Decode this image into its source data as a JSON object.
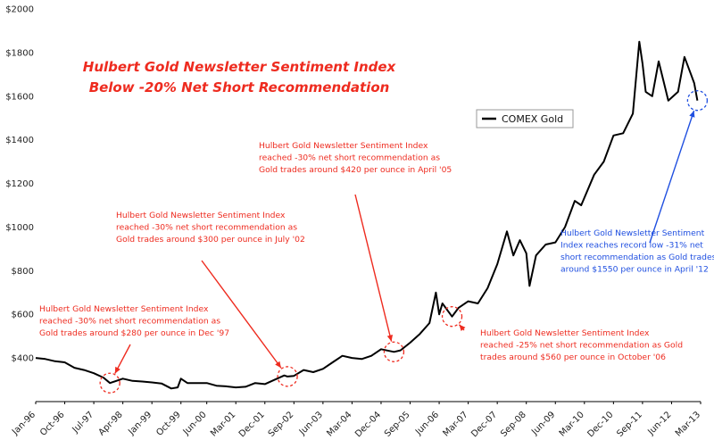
{
  "chart_data": {
    "type": "line",
    "title": [
      "Hulbert Gold Newsletter Sentiment Index",
      "Below -20% Net Short Recommendation"
    ],
    "xlabel": "",
    "ylabel": "",
    "ylim": [
      200,
      2000
    ],
    "yticks": [
      400,
      600,
      800,
      1000,
      1200,
      1400,
      1600,
      1800,
      2000
    ],
    "ytick_labels": [
      "$400",
      "$600",
      "$800",
      "$1000",
      "$1200",
      "$1400",
      "$1600",
      "$1800",
      "$2000"
    ],
    "xticks": [
      "1996-01",
      "1996-10",
      "1997-07",
      "1998-04",
      "1999-01",
      "1999-10",
      "2000-06",
      "2001-03",
      "2001-12",
      "2002-09",
      "2003-06",
      "2004-03",
      "2004-12",
      "2005-09",
      "2006-06",
      "2007-03",
      "2007-12",
      "2008-09",
      "2009-06",
      "2010-03",
      "2010-12",
      "2011-09",
      "2012-06",
      "2013-03"
    ],
    "xtick_labels": [
      "Jan-96",
      "Oct-96",
      "Jul-97",
      "Apr-98",
      "Jan-99",
      "Oct-99",
      "Jun-00",
      "Mar-01",
      "Dec-01",
      "Sep-02",
      "Jun-03",
      "Mar-04",
      "Dec-04",
      "Sep-05",
      "Jun-06",
      "Mar-07",
      "Dec-07",
      "Sep-08",
      "Jun-09",
      "Mar-10",
      "Dec-10",
      "Sep-11",
      "Jun-12",
      "Mar-13"
    ],
    "grid": false,
    "legend_position": "right",
    "series": [
      {
        "name": "COMEX Gold",
        "color": "#000000",
        "x": [
          "1996-01",
          "1996-04",
          "1996-07",
          "1996-10",
          "1997-01",
          "1997-04",
          "1997-07",
          "1997-10",
          "1997-12",
          "1998-04",
          "1998-07",
          "1998-10",
          "1999-01",
          "1999-04",
          "1999-07",
          "1999-09",
          "1999-10",
          "1999-12",
          "2000-03",
          "2000-06",
          "2000-09",
          "2000-12",
          "2001-03",
          "2001-06",
          "2001-09",
          "2001-12",
          "2002-03",
          "2002-06",
          "2002-07",
          "2002-09",
          "2002-12",
          "2003-03",
          "2003-06",
          "2003-09",
          "2003-12",
          "2004-03",
          "2004-06",
          "2004-09",
          "2004-12",
          "2005-04",
          "2005-06",
          "2005-09",
          "2005-12",
          "2006-03",
          "2006-05",
          "2006-06",
          "2006-07",
          "2006-10",
          "2006-12",
          "2007-03",
          "2007-06",
          "2007-09",
          "2007-12",
          "2008-03",
          "2008-05",
          "2008-07",
          "2008-09",
          "2008-10",
          "2008-12",
          "2009-03",
          "2009-06",
          "2009-09",
          "2009-12",
          "2010-02",
          "2010-06",
          "2010-09",
          "2010-12",
          "2011-03",
          "2011-06",
          "2011-08",
          "2011-09",
          "2011-10",
          "2011-12",
          "2012-02",
          "2012-04",
          "2012-05",
          "2012-08",
          "2012-10",
          "2012-12",
          "2013-01",
          "2013-02"
        ],
        "values": [
          400,
          395,
          385,
          380,
          355,
          345,
          330,
          310,
          285,
          305,
          295,
          292,
          288,
          283,
          260,
          265,
          305,
          285,
          285,
          285,
          273,
          270,
          265,
          268,
          285,
          280,
          300,
          320,
          315,
          318,
          345,
          335,
          350,
          380,
          410,
          400,
          395,
          410,
          440,
          428,
          435,
          470,
          510,
          560,
          700,
          600,
          650,
          590,
          630,
          660,
          650,
          720,
          830,
          980,
          870,
          940,
          880,
          730,
          870,
          920,
          930,
          1000,
          1120,
          1100,
          1240,
          1300,
          1420,
          1430,
          1520,
          1850,
          1750,
          1620,
          1600,
          1760,
          1640,
          1580,
          1620,
          1780,
          1700,
          1660,
          1580
        ]
      }
    ],
    "annotations": [
      {
        "lines": [
          "Hulbert Gold Newsletter Sentiment Index",
          "reached -30% net short recommendation as",
          "Gold trades around $280 per ounce in Dec '97"
        ],
        "color": "#ee2b1f",
        "x": "1997-12",
        "y": 285
      },
      {
        "lines": [
          "Hulbert Gold Newsletter Sentiment Index",
          "reached -30% net short recommendation as",
          "Gold trades around $300 per ounce in July '02"
        ],
        "color": "#ee2b1f",
        "x": "2002-07",
        "y": 315
      },
      {
        "lines": [
          "Hulbert Gold Newsletter Sentiment Index",
          "reached -30% net short recommendation as",
          "Gold trades around $420 per ounce in April '05"
        ],
        "color": "#ee2b1f",
        "x": "2005-04",
        "y": 428
      },
      {
        "lines": [
          "Hulbert Gold Newsletter Sentiment Index",
          "reached -25% net short recommendation as Gold",
          "trades around $560 per ounce in October '06"
        ],
        "color": "#ee2b1f",
        "x": "2006-10",
        "y": 590
      },
      {
        "lines": [
          "Hulbert Gold Newsletter Sentiment",
          "Index reaches record low -31% net",
          "short recommendation as Gold trades",
          "around $1550 per ounce in April '12"
        ],
        "color": "#1f4fe0",
        "x": "2013-02",
        "y": 1580
      }
    ]
  }
}
